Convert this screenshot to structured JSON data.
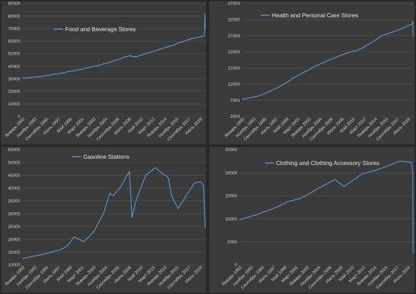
{
  "colors": {
    "background": "#2b2b2b",
    "panel": "#3a3a3a",
    "gridline": "#555555",
    "series": "#5b9bd5",
    "text": "#d0d0d0"
  },
  "chart_data": [
    {
      "type": "line",
      "series": [
        {
          "name": "Food and Beverage Stores"
        }
      ],
      "ylim": [
        0,
        90000
      ],
      "yticks": [
        "0",
        "10000",
        "20000",
        "30000",
        "40000",
        "50000",
        "60000",
        "70000",
        "80000",
        "90000"
      ],
      "xlim": [
        1992.0,
        2020.17
      ],
      "xticks": [
        "Январь 1992",
        "Ноябрь 1993",
        "Сентябрь 1995",
        "Июль 1997",
        "Май 1999",
        "Март 2001",
        "Январь 2003",
        "Ноябрь 2004",
        "Сентябрь 2006",
        "Июль 2008",
        "Май 2010",
        "Март 2012",
        "Январь 2014",
        "Ноябрь 2015",
        "Сентябрь 2017",
        "Июль 2019"
      ],
      "points": [
        [
          1992.0,
          30500
        ],
        [
          1995.0,
          32000
        ],
        [
          1998.0,
          34500
        ],
        [
          2001.0,
          37500
        ],
        [
          2004.0,
          41000
        ],
        [
          2006.5,
          45000
        ],
        [
          2008.5,
          48500
        ],
        [
          2009.5,
          47500
        ],
        [
          2012.0,
          51500
        ],
        [
          2015.0,
          56500
        ],
        [
          2018.0,
          62000
        ],
        [
          2019.9,
          64000
        ],
        [
          2020.05,
          64500
        ],
        [
          2020.13,
          81500
        ],
        [
          2020.17,
          70000
        ]
      ],
      "legend_position": "top-left"
    },
    {
      "type": "line",
      "series": [
        {
          "name": "Health and Personal Care Stores"
        }
      ],
      "ylim": [
        2000,
        37000
      ],
      "yticks": [
        "2000",
        "7000",
        "12000",
        "17000",
        "22000",
        "27000",
        "32000",
        "37000"
      ],
      "xlim": [
        1992.0,
        2020.17
      ],
      "xticks": [
        "Январь 1992",
        "Ноябрь 1993",
        "Сентябрь 1995",
        "Июль 1997",
        "Май 1999",
        "Март 2001",
        "Январь 2003",
        "Ноябрь 2004",
        "Сентябрь 2006",
        "Июль 2008",
        "Май 2010",
        "Март 2012",
        "Январь 2014",
        "Ноябрь 2015",
        "Сентябрь 2017",
        "Июль 2019"
      ],
      "points": [
        [
          1992.0,
          7300
        ],
        [
          1995.0,
          8500
        ],
        [
          1998.0,
          11000
        ],
        [
          2001.0,
          14500
        ],
        [
          2004.0,
          17500
        ],
        [
          2007.0,
          20000
        ],
        [
          2009.0,
          21500
        ],
        [
          2011.0,
          22500
        ],
        [
          2013.0,
          24500
        ],
        [
          2015.0,
          27000
        ],
        [
          2016.5,
          28000
        ],
        [
          2018.0,
          29000
        ],
        [
          2019.9,
          30500
        ],
        [
          2020.08,
          31500
        ],
        [
          2020.17,
          26700
        ]
      ],
      "legend_position": "top-left"
    },
    {
      "type": "line",
      "series": [
        {
          "name": "Gasoline Stations"
        }
      ],
      "ylim": [
        10000,
        55000
      ],
      "yticks": [
        "10000",
        "15000",
        "20000",
        "25000",
        "30000",
        "35000",
        "40000",
        "45000",
        "50000",
        "55000"
      ],
      "xlim": [
        1992.0,
        2020.17
      ],
      "xticks": [
        "Январь 1992",
        "Ноябрь 1993",
        "Сентябрь 1995",
        "Июль 1997",
        "Май 1999",
        "Март 2001",
        "Январь 2003",
        "Ноябрь 2004",
        "Сентябрь 2006",
        "Июль 2008",
        "Май 2010",
        "Март 2012",
        "Январь 2014",
        "Ноябрь 2015",
        "Сентябрь 2017",
        "Июль 2019"
      ],
      "points": [
        [
          1992.0,
          12500
        ],
        [
          1995.0,
          14000
        ],
        [
          1998.0,
          16000
        ],
        [
          1999.0,
          17500
        ],
        [
          2000.0,
          21000
        ],
        [
          2001.5,
          19000
        ],
        [
          2003.0,
          23000
        ],
        [
          2004.5,
          30000
        ],
        [
          2005.5,
          38000
        ],
        [
          2006.0,
          37000
        ],
        [
          2007.0,
          40000
        ],
        [
          2008.5,
          46500
        ],
        [
          2008.9,
          28500
        ],
        [
          2009.5,
          35000
        ],
        [
          2011.0,
          45000
        ],
        [
          2012.5,
          48000
        ],
        [
          2013.5,
          46000
        ],
        [
          2014.5,
          44000
        ],
        [
          2015.0,
          37000
        ],
        [
          2016.0,
          32000
        ],
        [
          2017.0,
          36000
        ],
        [
          2018.5,
          42000
        ],
        [
          2019.5,
          42500
        ],
        [
          2019.9,
          41000
        ],
        [
          2020.17,
          24500
        ]
      ],
      "legend_position": "top-left"
    },
    {
      "type": "line",
      "series": [
        {
          "name": "Clothing and Clothing Accessory Stores"
        }
      ],
      "ylim": [
        0,
        25000
      ],
      "yticks": [
        "0",
        "5000",
        "10000",
        "15000",
        "20000",
        "25000"
      ],
      "xlim": [
        1992.0,
        2020.17
      ],
      "xticks": [
        "Январь 1992",
        "Ноябрь 1993",
        "Сентябрь 1995",
        "Июль 1997",
        "Май 1999",
        "Март 2001",
        "Январь 2003",
        "Ноябрь 2004",
        "Сентябрь 2006",
        "Июль 2008",
        "Май 2010",
        "Март 2012",
        "Январь 2014",
        "Ноябрь 2015",
        "Сентябрь 2017",
        "Июль 2019"
      ],
      "points": [
        [
          1992.0,
          9800
        ],
        [
          1995.0,
          11000
        ],
        [
          1998.0,
          12500
        ],
        [
          2000.0,
          13800
        ],
        [
          2002.0,
          14500
        ],
        [
          2004.0,
          16000
        ],
        [
          2006.0,
          17500
        ],
        [
          2007.5,
          18500
        ],
        [
          2009.0,
          17000
        ],
        [
          2010.0,
          18000
        ],
        [
          2012.0,
          19800
        ],
        [
          2014.0,
          20500
        ],
        [
          2016.0,
          21500
        ],
        [
          2018.0,
          22500
        ],
        [
          2019.9,
          22300
        ],
        [
          2020.08,
          20000
        ],
        [
          2020.17,
          2500
        ]
      ],
      "legend_position": "top-left"
    }
  ]
}
